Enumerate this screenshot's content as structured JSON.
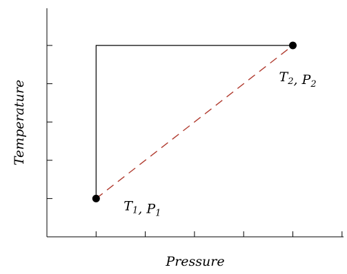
{
  "chart_data": {
    "type": "line",
    "title": "",
    "xlabel": "Pressure",
    "ylabel": "Temperature",
    "xlim": [
      0,
      6
    ],
    "ylim": [
      0,
      5
    ],
    "x_ticks": [
      1,
      2,
      3,
      4,
      5,
      6
    ],
    "y_ticks": [
      1,
      2,
      3,
      4,
      5
    ],
    "tick_labels_shown": false,
    "grid": false,
    "points": [
      {
        "name": "point-1",
        "x": 1,
        "y": 1,
        "label_main": "T",
        "label_main_sub": "1",
        "label_sep": ", ",
        "label_second": "P",
        "label_second_sub": "1"
      },
      {
        "name": "point-2",
        "x": 5,
        "y": 5,
        "label_main": "T",
        "label_main_sub": "2",
        "label_sep": ", ",
        "label_second": "P",
        "label_second_sub": "2"
      }
    ],
    "series": [
      {
        "style": "solid",
        "color": "#000000",
        "x": [
          1,
          1,
          5
        ],
        "y": [
          1,
          5,
          5
        ]
      },
      {
        "style": "dashed",
        "color": "#b03a2e",
        "x": [
          1,
          5
        ],
        "y": [
          1,
          5
        ]
      }
    ]
  }
}
